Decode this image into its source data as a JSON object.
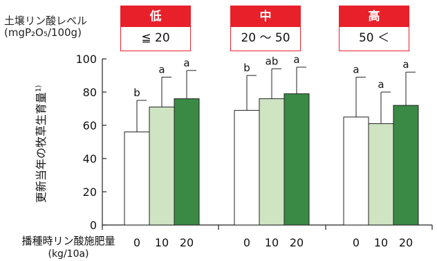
{
  "header": {
    "soil_label_line1": "土壌リン酸レベル",
    "soil_label_line2": "(mgP₂O₅/100g)"
  },
  "groups": [
    {
      "level": "低",
      "range": "≦ 20"
    },
    {
      "level": "中",
      "range": "20 ～ 50"
    },
    {
      "level": "高",
      "range": "50 ＜"
    }
  ],
  "colors": {
    "accent": "#e8202a",
    "rate_0": "#ffffff",
    "rate_10": "#cfe4c2",
    "rate_20": "#3a8a45"
  },
  "chart_data": {
    "type": "bar",
    "ylabel": "更新当年の牧草生育量",
    "ylabel_superscript": "1)",
    "xlabel_line1": "播種時リン酸施肥量",
    "xlabel_line2": "(kg/10a)",
    "ylim": [
      0,
      100
    ],
    "yticks": [
      0,
      20,
      40,
      60,
      80,
      100
    ],
    "categories": [
      "0",
      "10",
      "20"
    ],
    "groups": [
      {
        "name": "低",
        "values": [
          56,
          71,
          76
        ],
        "errors": [
          19,
          18,
          17
        ],
        "letters": [
          "b",
          "a",
          "a"
        ]
      },
      {
        "name": "中",
        "values": [
          69,
          76,
          79
        ],
        "errors": [
          21,
          18,
          16
        ],
        "letters": [
          "b",
          "ab",
          "a"
        ]
      },
      {
        "name": "高",
        "values": [
          65,
          61,
          72
        ],
        "errors": [
          24,
          19,
          20
        ],
        "letters": [
          "a",
          "a",
          "a"
        ]
      }
    ]
  }
}
